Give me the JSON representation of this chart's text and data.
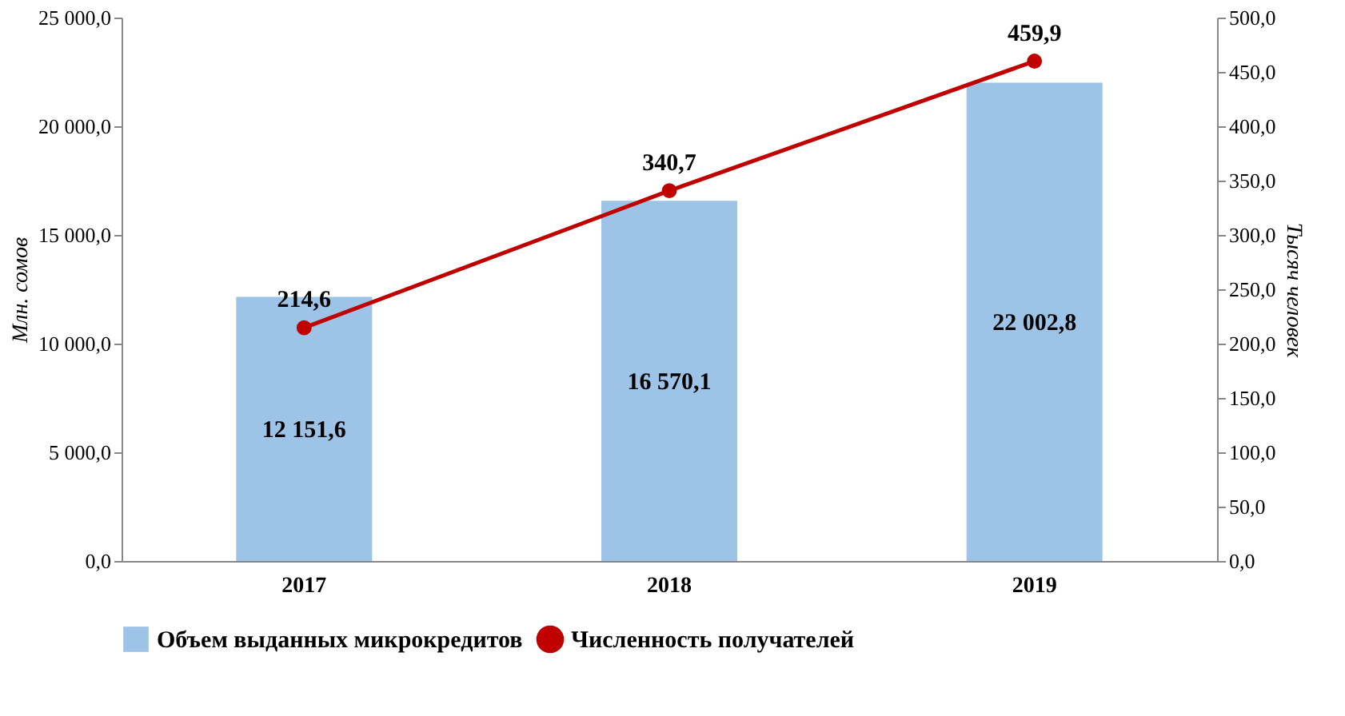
{
  "chart_data": {
    "type": "bar",
    "categories": [
      "2017",
      "2018",
      "2019"
    ],
    "ylabel": "Млн. сомов",
    "y2label": "Тысяч человек",
    "ylim": [
      0,
      25000
    ],
    "yticks": [
      {
        "value": 0,
        "label": "0,0"
      },
      {
        "value": 5000,
        "label": "5 000,0"
      },
      {
        "value": 10000,
        "label": "10 000,0"
      },
      {
        "value": 15000,
        "label": "15 000,0"
      },
      {
        "value": 20000,
        "label": "20 000,0"
      },
      {
        "value": 25000,
        "label": "25 000,0"
      }
    ],
    "y2lim": [
      0,
      500
    ],
    "y2ticks": [
      {
        "value": 0,
        "label": "0,0"
      },
      {
        "value": 50,
        "label": "50,0"
      },
      {
        "value": 100,
        "label": "100,0"
      },
      {
        "value": 150,
        "label": "150,0"
      },
      {
        "value": 200,
        "label": "200,0"
      },
      {
        "value": 250,
        "label": "250,0"
      },
      {
        "value": 300,
        "label": "300,0"
      },
      {
        "value": 350,
        "label": "350,0"
      },
      {
        "value": 400,
        "label": "400,0"
      },
      {
        "value": 450,
        "label": "450,0"
      },
      {
        "value": 500,
        "label": "500,0"
      }
    ],
    "series": [
      {
        "name": "Объем выданных микрокредитов",
        "color": "#9dc3e6",
        "values": [
          12151.6,
          16570.1,
          22002.8
        ],
        "value_labels": [
          "12 151,6",
          "16 570,1",
          "22 002,8"
        ]
      },
      {
        "name": "Численность получателей",
        "type": "line",
        "axis": "y2",
        "color": "#c00000",
        "marker": "circle",
        "values": [
          214.6,
          340.7,
          459.9
        ],
        "value_labels": [
          "214,6",
          "340,7",
          "459,9"
        ]
      }
    ],
    "legend": "bottom",
    "grid": false
  }
}
